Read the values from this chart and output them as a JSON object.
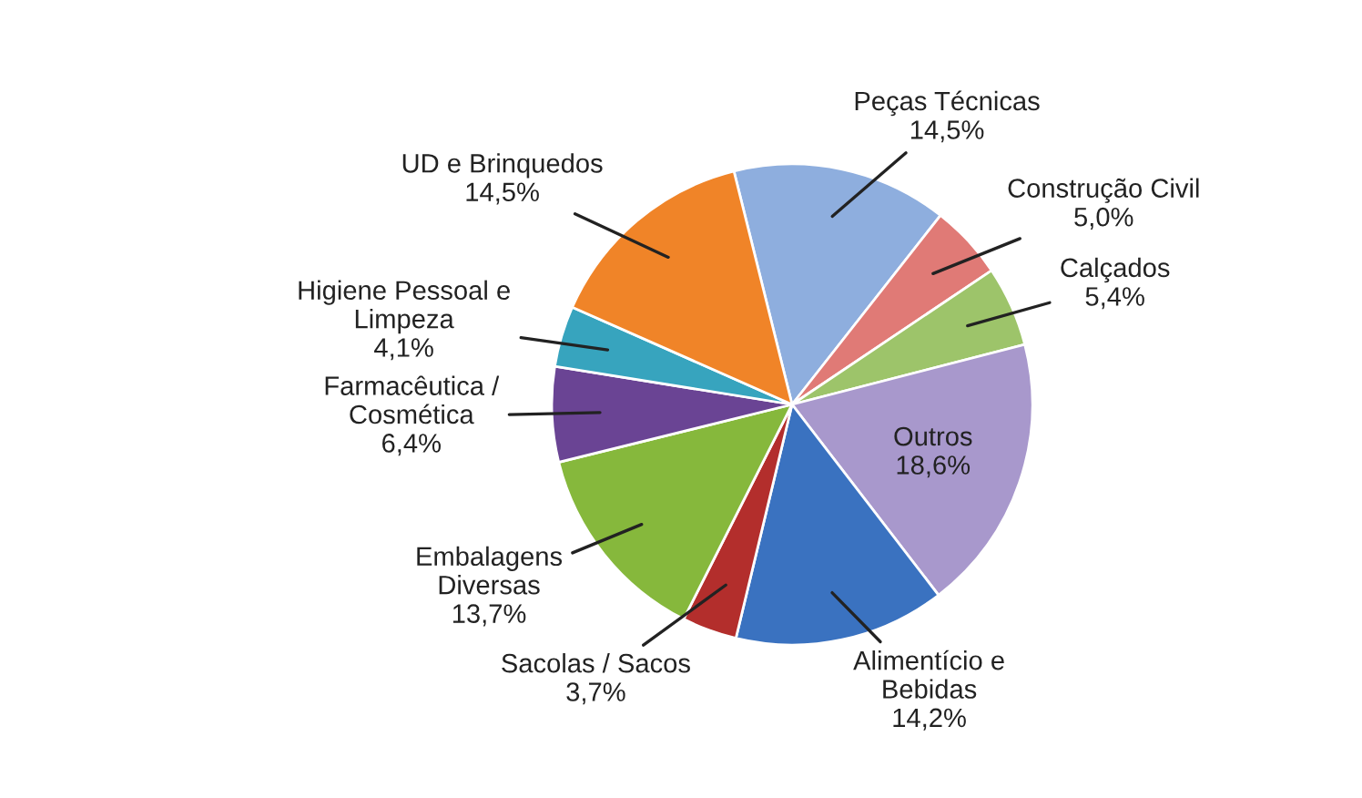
{
  "chart_data": {
    "type": "pie",
    "categories": [
      "Peças Técnicas",
      "Construção Civil",
      "Calçados",
      "Outros",
      "Alimentício e\nBebidas",
      "Sacolas / Sacos",
      "Embalagens\nDiversas",
      "Farmacêutica /\nCosmética",
      "Higiene Pessoal e\nLimpeza",
      "UD e Brinquedos"
    ],
    "values": [
      14.5,
      5.0,
      5.4,
      18.6,
      14.2,
      3.7,
      13.7,
      6.4,
      4.1,
      14.5
    ],
    "value_labels": [
      "14,5%",
      "5,0%",
      "5,4%",
      "18,6%",
      "14,2%",
      "3,7%",
      "13,7%",
      "6,4%",
      "4,1%",
      "14,5%"
    ],
    "colors": [
      "#8eaede",
      "#e07a76",
      "#9dc46a",
      "#a898cc",
      "#3a72c0",
      "#b32e2c",
      "#86b83c",
      "#6a4494",
      "#37a4be",
      "#f08428"
    ]
  }
}
